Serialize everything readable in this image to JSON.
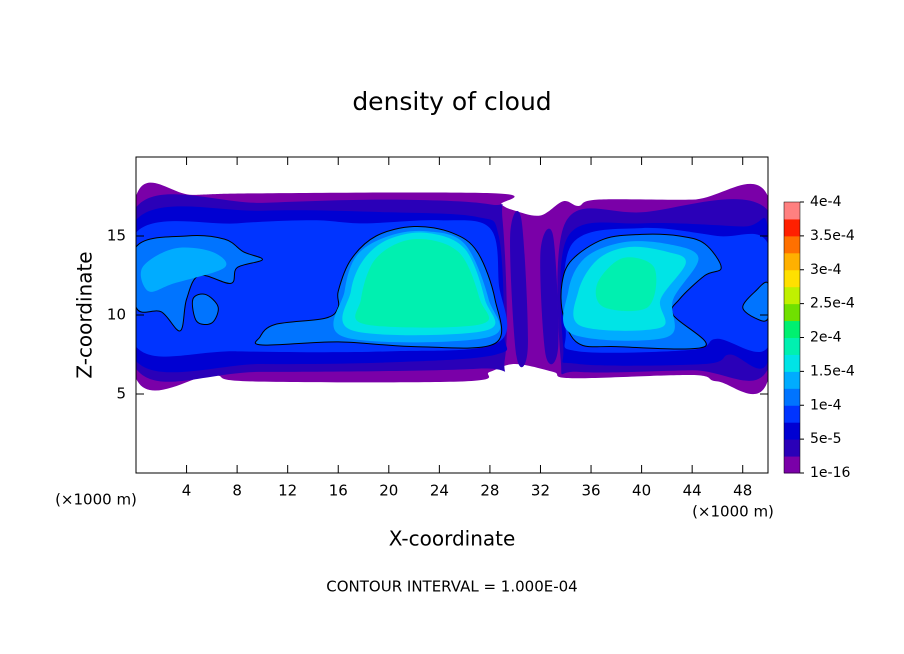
{
  "chart_data": {
    "type": "contour",
    "title": "density of cloud",
    "xlabel": "X-coordinate",
    "ylabel": "Z-coordinate",
    "x_unit": "(×1000 m)",
    "y_unit": "(×1000 m)",
    "footer": "CONTOUR INTERVAL = 1.000E-04",
    "xlim": [
      0,
      50
    ],
    "xticks": [
      4,
      8,
      12,
      16,
      20,
      24,
      28,
      32,
      36,
      40,
      44,
      48
    ],
    "ylim": [
      0,
      20
    ],
    "yticks": [
      5,
      10,
      15
    ],
    "clim": [
      1e-16,
      0.0004
    ],
    "cticks": [
      1e-16,
      {
        "value": 5e-05,
        "label": "5e-5"
      },
      {
        "value": 0.0001,
        "label": "1e-4"
      },
      {
        "value": 0.00015,
        "label": "1.5e-4"
      },
      {
        "value": 0.0002,
        "label": "2e-4"
      },
      {
        "value": 0.00025,
        "label": "2.5e-4"
      },
      {
        "value": 0.0003,
        "label": "3e-4"
      },
      {
        "value": 0.00035,
        "label": "3.5e-4"
      },
      {
        "value": 0.0004,
        "label": "4e-4"
      }
    ],
    "colors": [
      "#7a00a8",
      "#2a00b8",
      "#0000d2",
      "#0034ff",
      "#0074ff",
      "#00acff",
      "#00e4e6",
      "#00f0b0",
      "#00f070",
      "#70e000",
      "#c0f000",
      "#ffe000",
      "#ffb000",
      "#ff7000",
      "#ff2000",
      "#ff8080"
    ],
    "contour_level": 0.0001,
    "regions": [
      {
        "level": 1e-16,
        "points": [
          [
            0,
            17.5
          ],
          [
            4.5,
            17.6
          ],
          [
            10,
            17.7
          ],
          [
            28.5,
            17.7
          ],
          [
            28.9,
            17
          ],
          [
            30,
            16.6
          ],
          [
            32,
            16.3
          ],
          [
            33.8,
            17.2
          ],
          [
            35,
            16.9
          ],
          [
            36.5,
            17.3
          ],
          [
            44,
            17.3
          ],
          [
            50,
            17.5
          ],
          [
            50,
            5.9
          ],
          [
            46,
            5.8
          ],
          [
            44,
            6.2
          ],
          [
            34.5,
            6
          ],
          [
            33,
            6.4
          ],
          [
            30,
            6.9
          ],
          [
            28,
            6.4
          ],
          [
            26,
            5.8
          ],
          [
            9,
            5.8
          ],
          [
            6,
            6.2
          ],
          [
            0,
            6
          ]
        ]
      },
      {
        "level": 2.5e-05,
        "points": [
          [
            0,
            16.8
          ],
          [
            10,
            17.1
          ],
          [
            20,
            17.3
          ],
          [
            28,
            17
          ],
          [
            29,
            16
          ],
          [
            29.2,
            7.3
          ],
          [
            27,
            6.6
          ],
          [
            10,
            6.4
          ],
          [
            0,
            6.6
          ]
        ]
      },
      {
        "level": 2.5e-05,
        "points": [
          [
            34,
            15.9
          ],
          [
            40,
            16.5
          ],
          [
            50,
            16.6
          ],
          [
            50,
            6.6
          ],
          [
            44,
            6.5
          ],
          [
            35,
            6.4
          ],
          [
            33.6,
            7.2
          ]
        ]
      },
      {
        "level": 2.5e-05,
        "points": [
          [
            29.6,
            15
          ],
          [
            30.5,
            16
          ],
          [
            31,
            8
          ],
          [
            30.1,
            7.4
          ]
        ]
      },
      {
        "level": 2.5e-05,
        "points": [
          [
            32,
            14
          ],
          [
            33,
            15
          ],
          [
            33.4,
            8
          ],
          [
            32.4,
            7.5
          ]
        ]
      },
      {
        "level": 5e-05,
        "points": [
          [
            0,
            16
          ],
          [
            10,
            16.6
          ],
          [
            20,
            16.5
          ],
          [
            27,
            16.2
          ],
          [
            28.7,
            15
          ],
          [
            29.1,
            9
          ],
          [
            28.5,
            7.5
          ],
          [
            20,
            7
          ],
          [
            10,
            6.9
          ],
          [
            0,
            7.1
          ]
        ]
      },
      {
        "level": 5e-05,
        "points": [
          [
            34.2,
            15
          ],
          [
            40,
            15.8
          ],
          [
            48,
            15.6
          ],
          [
            50,
            15.5
          ],
          [
            50,
            7.1
          ],
          [
            47,
            7.5
          ],
          [
            45,
            6.9
          ],
          [
            35,
            6.9
          ],
          [
            33.8,
            8
          ]
        ]
      },
      {
        "level": 7.5e-05,
        "points": [
          [
            0,
            15.2
          ],
          [
            8,
            15.8
          ],
          [
            14,
            16
          ],
          [
            18,
            15.8
          ],
          [
            24,
            16
          ],
          [
            28,
            15.5
          ],
          [
            28.7,
            12
          ],
          [
            28.7,
            8.3
          ],
          [
            20,
            7.7
          ],
          [
            8,
            7.7
          ],
          [
            0,
            8
          ]
        ]
      },
      {
        "level": 7.5e-05,
        "points": [
          [
            34.5,
            14.5
          ],
          [
            40,
            15.5
          ],
          [
            46,
            15
          ],
          [
            50,
            14.5
          ],
          [
            50,
            8
          ],
          [
            46,
            8.5
          ],
          [
            44,
            7.8
          ],
          [
            35,
            7.7
          ],
          [
            34,
            9
          ]
        ]
      },
      {
        "level": 0.0001,
        "points": [
          [
            0,
            14.3
          ],
          [
            4,
            15
          ],
          [
            7,
            14.8
          ],
          [
            8.5,
            14
          ],
          [
            10,
            13.5
          ],
          [
            8,
            13
          ],
          [
            7.5,
            12
          ],
          [
            5,
            12.5
          ],
          [
            4,
            11
          ],
          [
            3.5,
            9
          ],
          [
            2,
            10.2
          ],
          [
            0,
            10.5
          ]
        ]
      },
      {
        "level": 0.0001,
        "points": [
          [
            16,
            11.5
          ],
          [
            17,
            13.5
          ],
          [
            19,
            15
          ],
          [
            22,
            15.6
          ],
          [
            25,
            15.2
          ],
          [
            27,
            14
          ],
          [
            28.4,
            11
          ],
          [
            28.4,
            8.2
          ],
          [
            22,
            8
          ],
          [
            16,
            8.3
          ],
          [
            10,
            8.1
          ],
          [
            9.8,
            8.6
          ],
          [
            11,
            9.4
          ],
          [
            15,
            9.8
          ],
          [
            16,
            10.5
          ]
        ]
      },
      {
        "level": 0.0001,
        "points": [
          [
            33.7,
            12
          ],
          [
            34.5,
            13.5
          ],
          [
            37,
            14.8
          ],
          [
            40,
            15.1
          ],
          [
            43,
            15
          ],
          [
            45,
            14.5
          ],
          [
            46.3,
            13
          ],
          [
            45,
            12.5
          ],
          [
            43,
            11
          ],
          [
            42.5,
            10
          ],
          [
            45,
            8
          ],
          [
            38,
            8
          ],
          [
            35,
            8.2
          ],
          [
            33.8,
            10
          ]
        ]
      },
      {
        "level": 0.0001,
        "points": [
          [
            48,
            10.5
          ],
          [
            49,
            11.5
          ],
          [
            50,
            12
          ],
          [
            50,
            9.8
          ],
          [
            49,
            9.8
          ]
        ]
      },
      {
        "level": 0.0001,
        "points": [
          [
            4.5,
            11
          ],
          [
            5.5,
            11.3
          ],
          [
            6.5,
            10.5
          ],
          [
            6,
            9.5
          ],
          [
            4.8,
            9.6
          ]
        ]
      },
      {
        "level": 0.000125,
        "points": [
          [
            16.5,
            11.5
          ],
          [
            17.5,
            13.8
          ],
          [
            20,
            15
          ],
          [
            23,
            15.3
          ],
          [
            26,
            14.5
          ],
          [
            27.9,
            11
          ],
          [
            27.9,
            8.6
          ],
          [
            16.5,
            8.6
          ]
        ]
      },
      {
        "level": 0.000125,
        "points": [
          [
            34.2,
            11.5
          ],
          [
            35.5,
            13.6
          ],
          [
            38.5,
            14.6
          ],
          [
            42,
            14.5
          ],
          [
            44.5,
            13.6
          ],
          [
            42.5,
            11
          ],
          [
            42,
            8.6
          ],
          [
            34.5,
            8.8
          ]
        ]
      },
      {
        "level": 0.000125,
        "points": [
          [
            0.5,
            13
          ],
          [
            3,
            14.2
          ],
          [
            6,
            14
          ],
          [
            7,
            13
          ],
          [
            3,
            12
          ],
          [
            1,
            11.5
          ]
        ]
      },
      {
        "level": 0.00015,
        "points": [
          [
            17,
            11.5
          ],
          [
            18,
            13.5
          ],
          [
            20,
            14.8
          ],
          [
            23,
            15.2
          ],
          [
            26,
            14.2
          ],
          [
            27.6,
            11
          ],
          [
            27.6,
            9
          ],
          [
            17.2,
            9
          ]
        ]
      },
      {
        "level": 0.00015,
        "points": [
          [
            35,
            11.5
          ],
          [
            36.5,
            13.5
          ],
          [
            39,
            14.3
          ],
          [
            42,
            14
          ],
          [
            43.5,
            13.3
          ],
          [
            41.5,
            11
          ],
          [
            41.5,
            9.2
          ],
          [
            35.2,
            9.3
          ]
        ]
      },
      {
        "level": 0.000175,
        "points": [
          [
            17.8,
            11
          ],
          [
            19,
            13.6
          ],
          [
            22,
            14.8
          ],
          [
            25.5,
            14
          ],
          [
            27.2,
            11
          ],
          [
            27.2,
            9.4
          ],
          [
            18.2,
            9.4
          ]
        ]
      },
      {
        "level": 0.000175,
        "points": [
          [
            36.5,
            12
          ],
          [
            38.5,
            13.6
          ],
          [
            41,
            13
          ],
          [
            40.5,
            10.5
          ],
          [
            37,
            10.5
          ]
        ]
      }
    ]
  }
}
